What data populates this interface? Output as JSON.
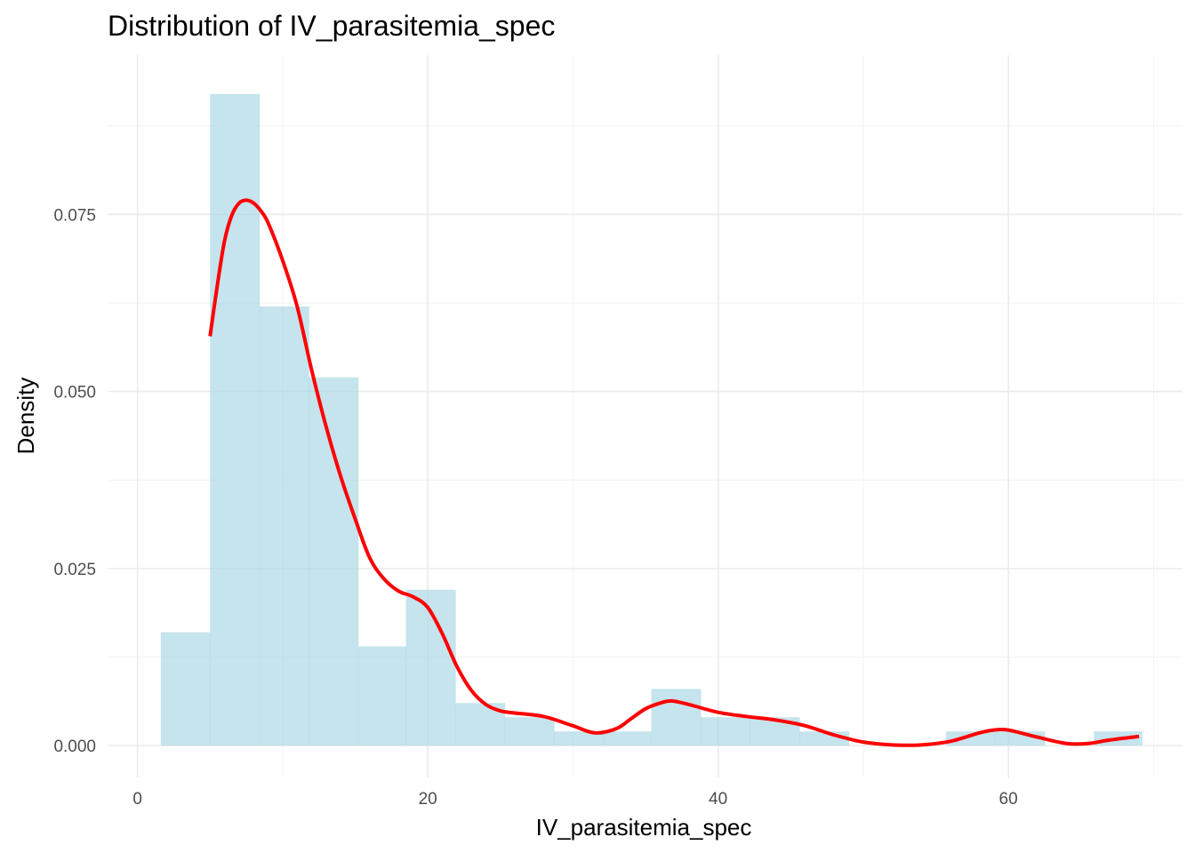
{
  "chart_data": {
    "type": "bar",
    "title": "Distribution of IV_parasitemia_spec",
    "xlabel": "IV_parasitemia_spec",
    "ylabel": "Density",
    "xlim": [
      -2,
      72
    ],
    "ylim": [
      -0.0045,
      0.0975
    ],
    "x_ticks": [
      0,
      20,
      40,
      60
    ],
    "x_tick_labels": [
      "0",
      "20",
      "40",
      "60"
    ],
    "y_ticks": [
      0,
      0.025,
      0.05,
      0.075
    ],
    "y_tick_labels": [
      "0.000",
      "0.025",
      "0.050",
      "0.075"
    ],
    "grid": true,
    "bins": [
      {
        "x0": 1.6,
        "x1": 5.0,
        "density": 0.016
      },
      {
        "x0": 5.0,
        "x1": 8.4,
        "density": 0.092
      },
      {
        "x0": 8.4,
        "x1": 11.8,
        "density": 0.062
      },
      {
        "x0": 11.8,
        "x1": 15.2,
        "density": 0.052
      },
      {
        "x0": 15.2,
        "x1": 18.5,
        "density": 0.014
      },
      {
        "x0": 18.5,
        "x1": 21.9,
        "density": 0.022
      },
      {
        "x0": 21.9,
        "x1": 25.3,
        "density": 0.006
      },
      {
        "x0": 25.3,
        "x1": 28.7,
        "density": 0.004
      },
      {
        "x0": 28.7,
        "x1": 32.1,
        "density": 0.002
      },
      {
        "x0": 32.1,
        "x1": 35.4,
        "density": 0.002
      },
      {
        "x0": 35.4,
        "x1": 38.8,
        "density": 0.008
      },
      {
        "x0": 38.8,
        "x1": 42.2,
        "density": 0.004
      },
      {
        "x0": 42.2,
        "x1": 45.6,
        "density": 0.004
      },
      {
        "x0": 45.6,
        "x1": 49.0,
        "density": 0.002
      },
      {
        "x0": 49.0,
        "x1": 52.3,
        "density": 0
      },
      {
        "x0": 52.3,
        "x1": 55.7,
        "density": 0
      },
      {
        "x0": 55.7,
        "x1": 59.1,
        "density": 0.002
      },
      {
        "x0": 59.1,
        "x1": 62.5,
        "density": 0.002
      },
      {
        "x0": 62.5,
        "x1": 65.9,
        "density": 0
      },
      {
        "x0": 65.9,
        "x1": 69.2,
        "density": 0.002
      }
    ],
    "density_curve": {
      "x": [
        5.0,
        5.5,
        6.0,
        6.5,
        7.0,
        7.5,
        8.0,
        8.5,
        9.0,
        10.0,
        11.0,
        12.0,
        13.0,
        14.0,
        15.0,
        16.0,
        17.0,
        18.0,
        19.0,
        20.0,
        21.0,
        22.0,
        23.0,
        24.0,
        25.0,
        26.0,
        28.0,
        30.0,
        31.5,
        33.0,
        34.0,
        35.0,
        36.0,
        36.8,
        38.0,
        40.0,
        42.0,
        44.0,
        46.0,
        48.0,
        50.0,
        52.0,
        54.0,
        56.0,
        58.0,
        59.0,
        60.0,
        62.0,
        64.0,
        65.5,
        67.0,
        69.0
      ],
      "y": [
        0.0578,
        0.065,
        0.0713,
        0.0749,
        0.0766,
        0.077,
        0.0766,
        0.0755,
        0.0738,
        0.0685,
        0.062,
        0.053,
        0.045,
        0.038,
        0.032,
        0.0265,
        0.0235,
        0.0218,
        0.021,
        0.0195,
        0.0158,
        0.0112,
        0.0078,
        0.0058,
        0.0049,
        0.0046,
        0.0041,
        0.0028,
        0.0018,
        0.0024,
        0.0038,
        0.0052,
        0.006,
        0.0063,
        0.0058,
        0.0047,
        0.0041,
        0.0036,
        0.0028,
        0.0015,
        0.0005,
        0.0001,
        0.0001,
        0.0006,
        0.0018,
        0.0022,
        0.0022,
        0.0012,
        0.0003,
        0.0003,
        0.0008,
        0.0013
      ]
    },
    "colors": {
      "bars": "#add8e6",
      "curve": "#ff0000",
      "background": "#ffffff"
    }
  }
}
